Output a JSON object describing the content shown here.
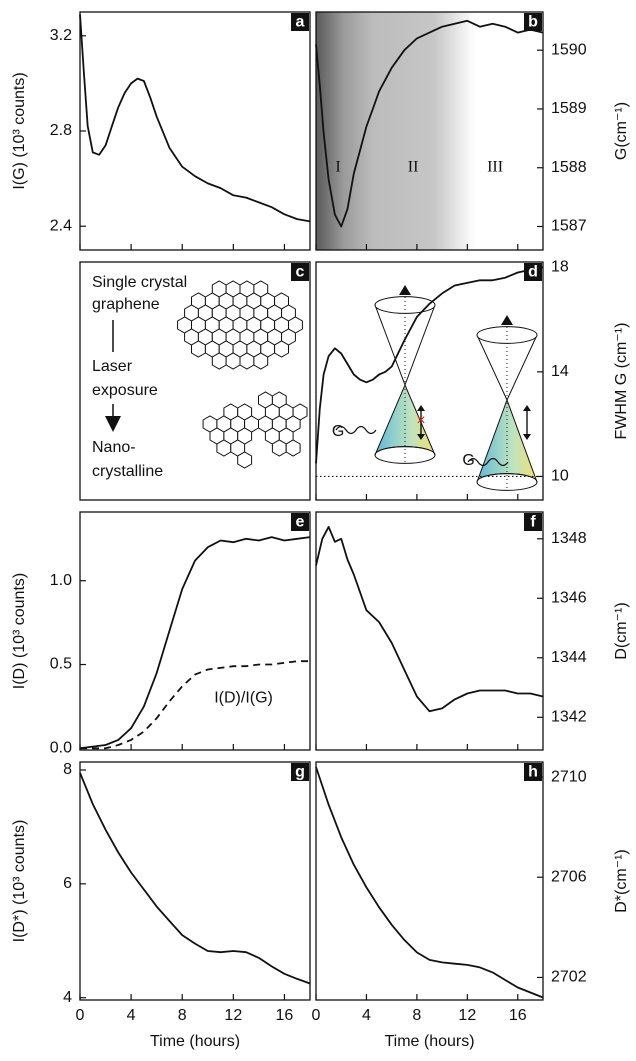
{
  "chart_data": [
    {
      "type": "line",
      "panel": "a",
      "ylabel": "I(G) (10³ counts)",
      "yaxis": "left",
      "x": [
        0,
        0.3,
        0.6,
        1,
        1.5,
        2,
        2.5,
        3,
        3.5,
        4,
        4.5,
        5,
        5.5,
        6,
        7,
        8,
        9,
        10,
        11,
        12,
        13,
        14,
        15,
        16,
        17,
        18
      ],
      "series": [
        {
          "color": "#111111",
          "values": [
            3.29,
            3.05,
            2.82,
            2.71,
            2.7,
            2.74,
            2.82,
            2.9,
            2.96,
            3.0,
            3.02,
            3.01,
            2.94,
            2.86,
            2.73,
            2.65,
            2.61,
            2.58,
            2.56,
            2.53,
            2.52,
            2.5,
            2.48,
            2.45,
            2.43,
            2.42
          ]
        }
      ],
      "xlim": [
        0,
        18
      ],
      "xticks": [
        0,
        4,
        8,
        12,
        16
      ],
      "ylim": [
        2.3,
        3.3
      ],
      "yticks": [
        2.4,
        2.8,
        3.2
      ]
    },
    {
      "type": "line",
      "panel": "b",
      "ylabel": "G(cm⁻¹)",
      "yaxis": "right",
      "shading": true,
      "x": [
        0,
        0.3,
        0.6,
        1,
        1.5,
        2,
        2.5,
        3,
        3.5,
        4,
        4.5,
        5,
        5.5,
        6,
        7,
        8,
        9,
        10,
        11,
        12,
        13,
        14,
        15,
        16,
        17,
        18
      ],
      "series": [
        {
          "color": "#111111",
          "values": [
            1590.1,
            1589.4,
            1588.6,
            1587.8,
            1587.2,
            1587.0,
            1587.3,
            1587.9,
            1588.3,
            1588.7,
            1589.0,
            1589.3,
            1589.5,
            1589.7,
            1590.0,
            1590.2,
            1590.3,
            1590.4,
            1590.45,
            1590.5,
            1590.4,
            1590.45,
            1590.4,
            1590.3,
            1590.35,
            1590.3
          ]
        }
      ],
      "annotations": [
        {
          "text": "I",
          "x": 1.75,
          "y": 1588.0
        },
        {
          "text": "II",
          "x": 7.7,
          "y": 1588.0
        },
        {
          "text": "III",
          "x": 14.2,
          "y": 1588.0
        }
      ],
      "xlim": [
        0,
        18
      ],
      "xticks": [
        0,
        4,
        8,
        12,
        16
      ],
      "ylim": [
        1586.6,
        1590.65
      ],
      "yticks": [
        1587,
        1588,
        1589,
        1590
      ]
    },
    {
      "type": "diagram",
      "panel": "c",
      "lines": [
        "Single crystal",
        "graphene",
        "Laser",
        "exposure",
        "Nano-",
        "crystalline"
      ]
    },
    {
      "type": "line",
      "panel": "d",
      "ylabel": "FWHM G (cm⁻¹)",
      "yaxis": "right",
      "hline": 10,
      "x": [
        0,
        0.3,
        0.6,
        1,
        1.5,
        2,
        2.5,
        3,
        3.5,
        4,
        4.5,
        5,
        5.5,
        6,
        7,
        8,
        9,
        10,
        11,
        12,
        13,
        14,
        15,
        16,
        17,
        18
      ],
      "series": [
        {
          "color": "#111111",
          "values": [
            10.5,
            12.6,
            13.9,
            14.6,
            14.9,
            14.7,
            14.3,
            13.9,
            13.7,
            13.6,
            13.7,
            13.9,
            14.0,
            14.2,
            15.2,
            16.1,
            16.6,
            17.0,
            17.3,
            17.4,
            17.5,
            17.5,
            17.6,
            17.8,
            17.9,
            18.0
          ]
        }
      ],
      "annotations": [
        {
          "text": "G",
          "x": 1.75,
          "y": 11.7
        },
        {
          "text": "G",
          "x": 12.1,
          "y": 10.6
        }
      ],
      "xlim": [
        0,
        18
      ],
      "xticks": [
        0,
        4,
        8,
        12,
        16
      ],
      "ylim": [
        9.1,
        18.2
      ],
      "yticks": [
        10,
        14,
        18
      ]
    },
    {
      "type": "line",
      "panel": "e",
      "ylabel": "I(D) (10³ counts)",
      "yaxis": "left",
      "x": [
        0,
        1,
        2,
        3,
        4,
        5,
        6,
        7,
        8,
        9,
        10,
        11,
        12,
        13,
        14,
        15,
        16,
        17,
        18
      ],
      "series": [
        {
          "color": "#111111",
          "values": [
            0.0,
            0.01,
            0.02,
            0.05,
            0.12,
            0.25,
            0.45,
            0.7,
            0.95,
            1.12,
            1.2,
            1.24,
            1.23,
            1.25,
            1.24,
            1.26,
            1.24,
            1.25,
            1.26
          ]
        },
        {
          "color": "#111111",
          "dashed": true,
          "values": [
            0.0,
            0.0,
            0.0,
            0.02,
            0.05,
            0.1,
            0.18,
            0.28,
            0.37,
            0.44,
            0.47,
            0.48,
            0.49,
            0.49,
            0.5,
            0.5,
            0.51,
            0.52,
            0.52
          ]
        }
      ],
      "annotations": [
        {
          "text": "I(D)/I(G)",
          "x": 12.8,
          "y": 0.3
        }
      ],
      "xlim": [
        0,
        18
      ],
      "xticks": [
        0,
        4,
        8,
        12,
        16
      ],
      "ylim": [
        -0.01,
        1.41
      ],
      "yticks": [
        {
          "value": 0,
          "label": "0.0"
        },
        0.5,
        {
          "value": 1,
          "label": "1.0"
        }
      ]
    },
    {
      "type": "line",
      "panel": "f",
      "ylabel": "D(cm⁻¹)",
      "yaxis": "right",
      "x": [
        0,
        0.5,
        1,
        1.5,
        2,
        2.5,
        3,
        4,
        5,
        6,
        7,
        8,
        9,
        10,
        11,
        12,
        13,
        14,
        15,
        16,
        17,
        18
      ],
      "series": [
        {
          "color": "#111111",
          "values": [
            1347.1,
            1348.0,
            1348.4,
            1347.9,
            1348.0,
            1347.3,
            1346.8,
            1345.6,
            1345.2,
            1344.5,
            1343.6,
            1342.7,
            1342.2,
            1342.3,
            1342.6,
            1342.8,
            1342.9,
            1342.9,
            1342.9,
            1342.8,
            1342.8,
            1342.7
          ]
        }
      ],
      "xlim": [
        0,
        18
      ],
      "xticks": [
        0,
        4,
        8,
        12,
        16
      ],
      "ylim": [
        1340.9,
        1348.9
      ],
      "yticks": [
        1342,
        1344,
        1346,
        1348
      ]
    },
    {
      "type": "line",
      "panel": "g",
      "ylabel": "I(D*) (10³ counts)",
      "yaxis": "left",
      "xlabel": "Time (hours)",
      "x": [
        0,
        1,
        2,
        3,
        4,
        5,
        6,
        7,
        8,
        9,
        10,
        11,
        12,
        13,
        14,
        15,
        16,
        17,
        18
      ],
      "series": [
        {
          "color": "#111111",
          "values": [
            7.95,
            7.4,
            6.95,
            6.55,
            6.2,
            5.9,
            5.6,
            5.35,
            5.1,
            4.95,
            4.82,
            4.8,
            4.82,
            4.8,
            4.7,
            4.55,
            4.42,
            4.33,
            4.25
          ]
        }
      ],
      "xlim": [
        0,
        18
      ],
      "xticks": [
        0,
        4,
        8,
        12,
        16
      ],
      "ylim": [
        3.96,
        8.14
      ],
      "yticks": [
        4,
        6,
        8
      ]
    },
    {
      "type": "line",
      "panel": "h",
      "ylabel": "D*(cm⁻¹)",
      "yaxis": "right",
      "xlabel": "Time (hours)",
      "x": [
        0,
        1,
        2,
        3,
        4,
        5,
        6,
        7,
        8,
        9,
        10,
        11,
        12,
        13,
        14,
        15,
        16,
        17,
        18
      ],
      "series": [
        {
          "color": "#111111",
          "values": [
            2710.4,
            2708.9,
            2707.6,
            2706.5,
            2705.6,
            2704.8,
            2704.1,
            2703.5,
            2703.0,
            2702.7,
            2702.6,
            2702.55,
            2702.5,
            2702.4,
            2702.2,
            2701.9,
            2701.6,
            2701.4,
            2701.2
          ]
        }
      ],
      "xlim": [
        0,
        18
      ],
      "xticks": [
        0,
        4,
        8,
        12,
        16
      ],
      "ylim": [
        2701.1,
        2710.6
      ],
      "yticks": [
        2702,
        2706,
        2710
      ]
    }
  ]
}
